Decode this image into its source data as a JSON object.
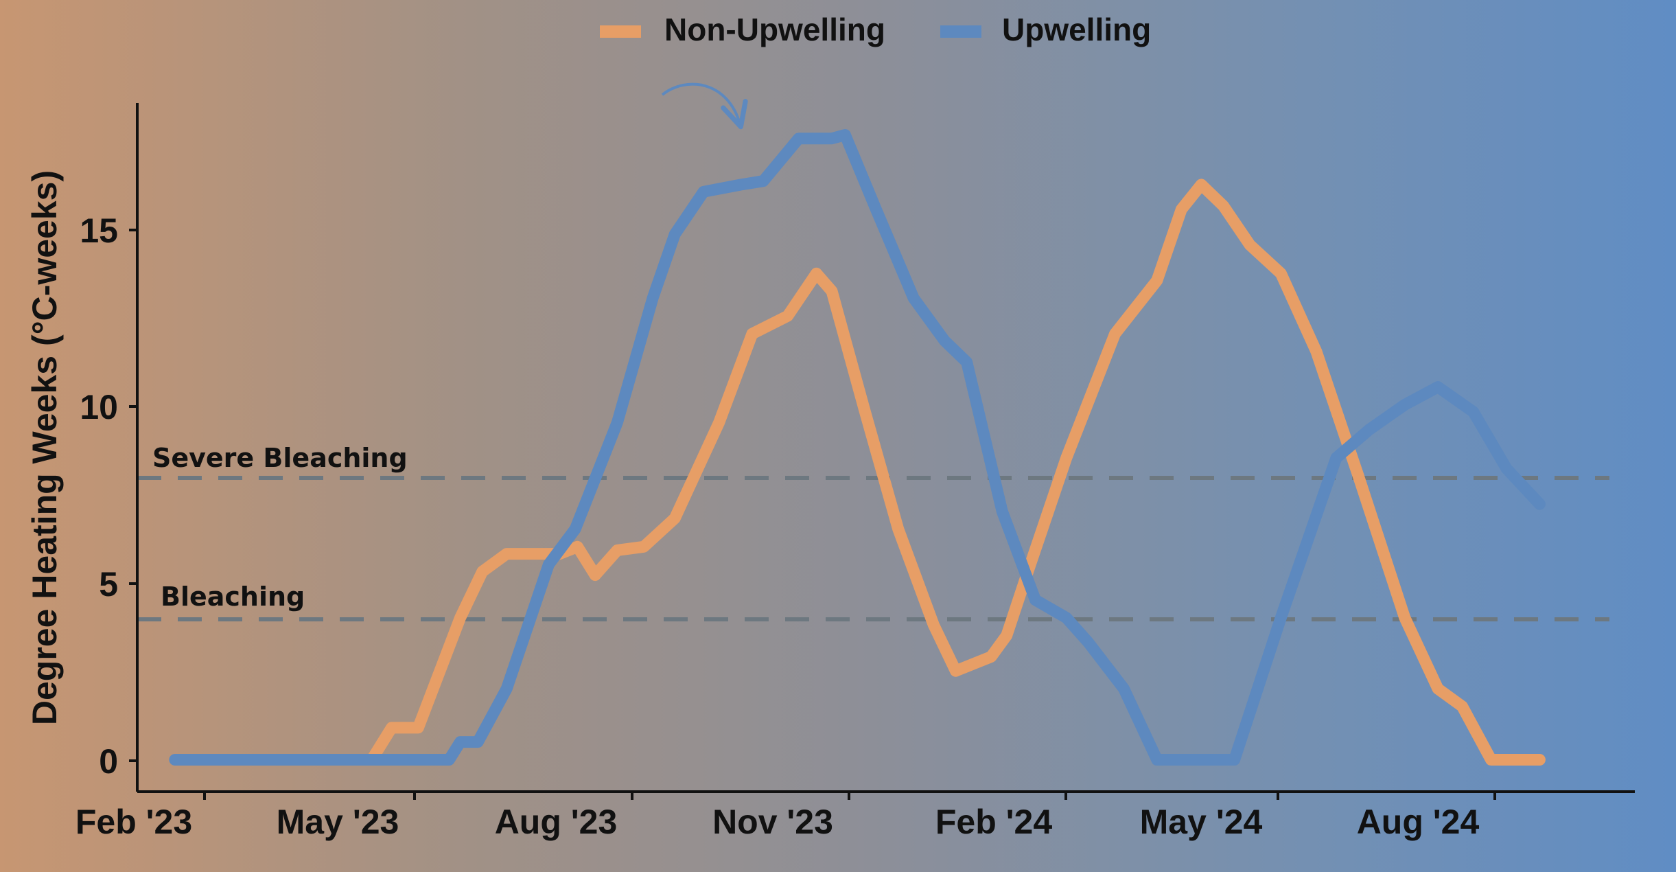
{
  "chart_data": {
    "type": "line",
    "title": "",
    "xlabel": "",
    "ylabel": "Degree Heating Weeks (°C-weeks)",
    "legend_position": "top",
    "grid": false,
    "x_ticks": [
      "Feb '23",
      "May '23",
      "Aug '23",
      "Nov '23",
      "Feb '24",
      "May '24",
      "Aug '24"
    ],
    "y_ticks": [
      0,
      5,
      10,
      15
    ],
    "x_range": [
      "2023-01-15",
      "2024-11-22"
    ],
    "ylim": [
      -0.9,
      18.5
    ],
    "colors": {
      "non_upwelling": "#e79e66",
      "upwelling": "#5d89bf",
      "threshold_line": "#6d7880",
      "axis": "#111111"
    },
    "thresholds": [
      {
        "label": "Severe Bleaching",
        "value": 8
      },
      {
        "label": "Bleaching",
        "value": 4
      }
    ],
    "series": [
      {
        "name": "Non-Upwelling",
        "color": "#e79e66",
        "points": [
          [
            "2023-02-01",
            0.0
          ],
          [
            "2023-05-01",
            0.0
          ],
          [
            "2023-05-10",
            0.9
          ],
          [
            "2023-05-22",
            0.9
          ],
          [
            "2023-06-10",
            4.0
          ],
          [
            "2023-06-20",
            5.3
          ],
          [
            "2023-07-01",
            5.8
          ],
          [
            "2023-07-25",
            5.8
          ],
          [
            "2023-08-02",
            6.0
          ],
          [
            "2023-08-10",
            5.2
          ],
          [
            "2023-08-20",
            5.9
          ],
          [
            "2023-09-01",
            6.0
          ],
          [
            "2023-09-15",
            6.8
          ],
          [
            "2023-10-05",
            9.5
          ],
          [
            "2023-10-20",
            12.0
          ],
          [
            "2023-11-05",
            12.5
          ],
          [
            "2023-11-18",
            13.7
          ],
          [
            "2023-11-25",
            13.2
          ],
          [
            "2023-12-10",
            9.8
          ],
          [
            "2023-12-25",
            6.5
          ],
          [
            "2024-01-10",
            3.8
          ],
          [
            "2024-01-20",
            2.5
          ],
          [
            "2024-02-05",
            2.9
          ],
          [
            "2024-02-12",
            3.5
          ],
          [
            "2024-02-20",
            5.0
          ],
          [
            "2024-03-10",
            8.5
          ],
          [
            "2024-04-01",
            12.0
          ],
          [
            "2024-04-20",
            13.5
          ],
          [
            "2024-05-01",
            15.5
          ],
          [
            "2024-05-10",
            16.2
          ],
          [
            "2024-05-20",
            15.6
          ],
          [
            "2024-06-01",
            14.5
          ],
          [
            "2024-06-15",
            13.7
          ],
          [
            "2024-07-01",
            11.5
          ],
          [
            "2024-07-20",
            8.0
          ],
          [
            "2024-08-10",
            4.0
          ],
          [
            "2024-08-25",
            2.0
          ],
          [
            "2024-09-05",
            1.5
          ],
          [
            "2024-09-18",
            0.0
          ],
          [
            "2024-10-10",
            0.0
          ]
        ]
      },
      {
        "name": "Upwelling",
        "color": "#5d89bf",
        "points": [
          [
            "2023-02-01",
            0.0
          ],
          [
            "2023-06-05",
            0.0
          ],
          [
            "2023-06-10",
            0.5
          ],
          [
            "2023-06-18",
            0.5
          ],
          [
            "2023-07-01",
            2.0
          ],
          [
            "2023-07-20",
            5.5
          ],
          [
            "2023-08-01",
            6.5
          ],
          [
            "2023-08-20",
            9.5
          ],
          [
            "2023-09-05",
            13.0
          ],
          [
            "2023-09-15",
            14.8
          ],
          [
            "2023-09-28",
            16.0
          ],
          [
            "2023-10-15",
            16.2
          ],
          [
            "2023-10-25",
            16.3
          ],
          [
            "2023-11-10",
            17.5
          ],
          [
            "2023-11-25",
            17.5
          ],
          [
            "2023-12-01",
            17.6
          ],
          [
            "2023-12-15",
            15.5
          ],
          [
            "2024-01-01",
            13.0
          ],
          [
            "2024-01-15",
            11.8
          ],
          [
            "2024-01-25",
            11.2
          ],
          [
            "2024-02-10",
            7.0
          ],
          [
            "2024-02-25",
            4.5
          ],
          [
            "2024-03-10",
            4.0
          ],
          [
            "2024-03-20",
            3.3
          ],
          [
            "2024-04-05",
            2.0
          ],
          [
            "2024-04-20",
            0.0
          ],
          [
            "2024-05-01",
            0.0
          ],
          [
            "2024-05-25",
            0.0
          ],
          [
            "2024-06-15",
            4.0
          ],
          [
            "2024-07-10",
            8.5
          ],
          [
            "2024-07-25",
            9.3
          ],
          [
            "2024-08-10",
            10.0
          ],
          [
            "2024-08-25",
            10.5
          ],
          [
            "2024-09-10",
            9.8
          ],
          [
            "2024-09-25",
            8.2
          ],
          [
            "2024-10-10",
            7.2
          ]
        ]
      }
    ]
  }
}
